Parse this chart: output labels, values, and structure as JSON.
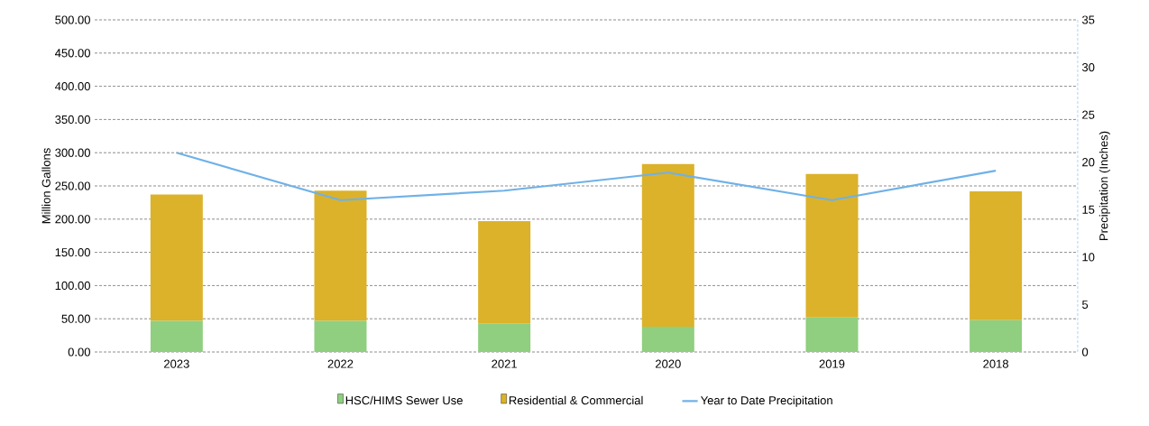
{
  "chart_data": {
    "type": "bar",
    "stacked": true,
    "categories": [
      "2023",
      "2022",
      "2021",
      "2020",
      "2019",
      "2018"
    ],
    "series": [
      {
        "name": "HSC/HIMS Sewer Use",
        "color": "#8fcf7f",
        "values": [
          47,
          47,
          43,
          38,
          52,
          48
        ]
      },
      {
        "name": "Residential & Commercial",
        "color": "#dbb22a",
        "values": [
          190,
          196,
          154,
          245,
          216,
          194
        ]
      },
      {
        "name": "Year to Date Precipitation",
        "color": "#6fb1e8",
        "type": "line",
        "axis": "y2",
        "values": [
          21,
          16,
          17,
          18.9,
          16,
          19.1
        ]
      }
    ],
    "ylabel": "Million Gallons",
    "y2label": "Precipitation (Inches)",
    "ylim": [
      0,
      500
    ],
    "yticks": [
      {
        "value": 0,
        "label": "0.00"
      },
      {
        "value": 50,
        "label": "50.00"
      },
      {
        "value": 100,
        "label": "100.00"
      },
      {
        "value": 150,
        "label": "150.00"
      },
      {
        "value": 200,
        "label": "200.00"
      },
      {
        "value": 250,
        "label": "250.00"
      },
      {
        "value": 300,
        "label": "300.00"
      },
      {
        "value": 350,
        "label": "350.00"
      },
      {
        "value": 400,
        "label": "400.00"
      },
      {
        "value": 450,
        "label": "450.00"
      },
      {
        "value": 500,
        "label": "500.00"
      }
    ],
    "y2lim": [
      0,
      35
    ],
    "y2ticks": [
      0,
      5,
      10,
      15,
      20,
      25,
      30,
      35
    ],
    "grid": "y",
    "legend": "bottom"
  }
}
